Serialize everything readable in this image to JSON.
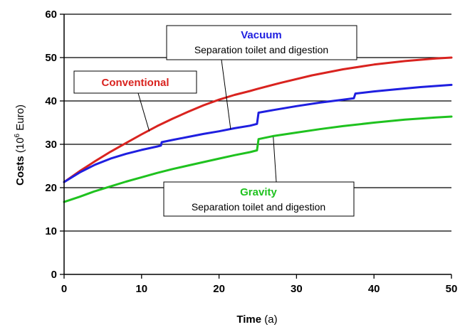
{
  "chart_data": {
    "type": "line",
    "xlabel": "Time",
    "xlabel_unit": " (a)",
    "ylabel": "Costs",
    "ylabel_unit_open": " (10",
    "ylabel_unit_exp": "6",
    "ylabel_unit_close": " Euro)",
    "xlim": [
      0,
      50
    ],
    "ylim": [
      0,
      60
    ],
    "xticks": [
      0,
      10,
      20,
      30,
      40,
      50
    ],
    "yticks": [
      0,
      10,
      20,
      30,
      40,
      50,
      60
    ],
    "grid": "horizontal",
    "series": [
      {
        "name": "Conventional",
        "color": "#d9231f",
        "points": [
          [
            0,
            21.3
          ],
          [
            2,
            23.8
          ],
          [
            4,
            26.1
          ],
          [
            6,
            28.3
          ],
          [
            8,
            30.3
          ],
          [
            10,
            32.3
          ],
          [
            12,
            34.2
          ],
          [
            14,
            35.9
          ],
          [
            16,
            37.5
          ],
          [
            18,
            39.0
          ],
          [
            20,
            40.3
          ],
          [
            22,
            41.4
          ],
          [
            24,
            42.3
          ],
          [
            25,
            42.8
          ],
          [
            28,
            44.2
          ],
          [
            32,
            45.9
          ],
          [
            36,
            47.3
          ],
          [
            40,
            48.4
          ],
          [
            44,
            49.2
          ],
          [
            48,
            49.8
          ],
          [
            50,
            50.0
          ]
        ]
      },
      {
        "name": "Vacuum",
        "color": "#1f1fe0",
        "points": [
          [
            0,
            21.3
          ],
          [
            2,
            23.5
          ],
          [
            4,
            25.3
          ],
          [
            6,
            26.7
          ],
          [
            8,
            27.8
          ],
          [
            10,
            28.7
          ],
          [
            12,
            29.5
          ],
          [
            12.5,
            29.7
          ],
          [
            12.6,
            30.5
          ],
          [
            14,
            31.0
          ],
          [
            16,
            31.7
          ],
          [
            18,
            32.4
          ],
          [
            20,
            33.0
          ],
          [
            22,
            33.7
          ],
          [
            24,
            34.3
          ],
          [
            24.9,
            34.7
          ],
          [
            25.1,
            37.3
          ],
          [
            27,
            37.9
          ],
          [
            30,
            38.8
          ],
          [
            33,
            39.6
          ],
          [
            36,
            40.3
          ],
          [
            37.4,
            40.6
          ],
          [
            37.6,
            41.7
          ],
          [
            40,
            42.2
          ],
          [
            43,
            42.7
          ],
          [
            46,
            43.2
          ],
          [
            50,
            43.7
          ]
        ]
      },
      {
        "name": "Gravity",
        "color": "#1fc21f",
        "points": [
          [
            0,
            16.7
          ],
          [
            2,
            17.9
          ],
          [
            4,
            19.2
          ],
          [
            6,
            20.3
          ],
          [
            8,
            21.4
          ],
          [
            10,
            22.4
          ],
          [
            12,
            23.4
          ],
          [
            14,
            24.3
          ],
          [
            16,
            25.1
          ],
          [
            18,
            25.9
          ],
          [
            20,
            26.7
          ],
          [
            22,
            27.5
          ],
          [
            24,
            28.2
          ],
          [
            24.9,
            28.6
          ],
          [
            25.1,
            31.2
          ],
          [
            27,
            31.9
          ],
          [
            30,
            32.7
          ],
          [
            33,
            33.5
          ],
          [
            36,
            34.2
          ],
          [
            40,
            35.0
          ],
          [
            44,
            35.7
          ],
          [
            48,
            36.2
          ],
          [
            50,
            36.4
          ]
        ]
      }
    ],
    "annotations": [
      {
        "title": "Vacuum",
        "subtitle": "Separation toilet and digestion"
      },
      {
        "title": "Conventional",
        "subtitle": ""
      },
      {
        "title": "Gravity",
        "subtitle": "Separation toilet and digestion"
      }
    ]
  }
}
